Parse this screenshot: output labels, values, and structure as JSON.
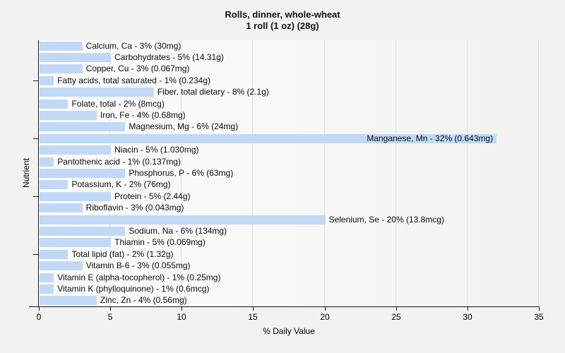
{
  "title": {
    "line1": "Rolls, dinner, whole-wheat",
    "line2": "1 roll (1 oz) (28g)"
  },
  "chart_data": {
    "type": "bar",
    "orientation": "horizontal",
    "title": "Rolls, dinner, whole-wheat",
    "subtitle": "1 roll (1 oz) (28g)",
    "xlabel": "% Daily Value",
    "ylabel": "Nutrient",
    "xlim": [
      0,
      35
    ],
    "xticks": [
      0,
      5,
      10,
      15,
      20,
      25,
      30,
      35
    ],
    "grid": "vertical",
    "legend": "none",
    "bar_color": "#c1d9f7",
    "ytick_rows": [
      3,
      8,
      13,
      18
    ],
    "bars": [
      {
        "name": "Calcium, Ca",
        "percent": 3,
        "amount": "30mg"
      },
      {
        "name": "Carbohydrates",
        "percent": 5,
        "amount": "14.31g"
      },
      {
        "name": "Copper, Cu",
        "percent": 3,
        "amount": "0.067mg"
      },
      {
        "name": "Fatty acids, total saturated",
        "percent": 1,
        "amount": "0.234g"
      },
      {
        "name": "Fiber, total dietary",
        "percent": 8,
        "amount": "2.1g"
      },
      {
        "name": "Folate, total",
        "percent": 2,
        "amount": "8mcg"
      },
      {
        "name": "Iron, Fe",
        "percent": 4,
        "amount": "0.68mg"
      },
      {
        "name": "Magnesium, Mg",
        "percent": 6,
        "amount": "24mg"
      },
      {
        "name": "Manganese, Mn",
        "percent": 32,
        "amount": "0.643mg"
      },
      {
        "name": "Niacin",
        "percent": 5,
        "amount": "1.030mg"
      },
      {
        "name": "Pantothenic acid",
        "percent": 1,
        "amount": "0.137mg"
      },
      {
        "name": "Phosphorus, P",
        "percent": 6,
        "amount": "63mg"
      },
      {
        "name": "Potassium, K",
        "percent": 2,
        "amount": "76mg"
      },
      {
        "name": "Protein",
        "percent": 5,
        "amount": "2.44g"
      },
      {
        "name": "Riboflavin",
        "percent": 3,
        "amount": "0.043mg"
      },
      {
        "name": "Selenium, Se",
        "percent": 20,
        "amount": "13.8mcg"
      },
      {
        "name": "Sodium, Na",
        "percent": 6,
        "amount": "134mg"
      },
      {
        "name": "Thiamin",
        "percent": 5,
        "amount": "0.069mg"
      },
      {
        "name": "Total lipid (fat)",
        "percent": 2,
        "amount": "1.32g"
      },
      {
        "name": "Vitamin B-6",
        "percent": 3,
        "amount": "0.055mg"
      },
      {
        "name": "Vitamin E (alpha-tocopherol)",
        "percent": 1,
        "amount": "0.25mg"
      },
      {
        "name": "Vitamin K (phylloquinone)",
        "percent": 1,
        "amount": "0.6mcg"
      },
      {
        "name": "Zinc, Zn",
        "percent": 4,
        "amount": "0.56mg"
      }
    ]
  }
}
